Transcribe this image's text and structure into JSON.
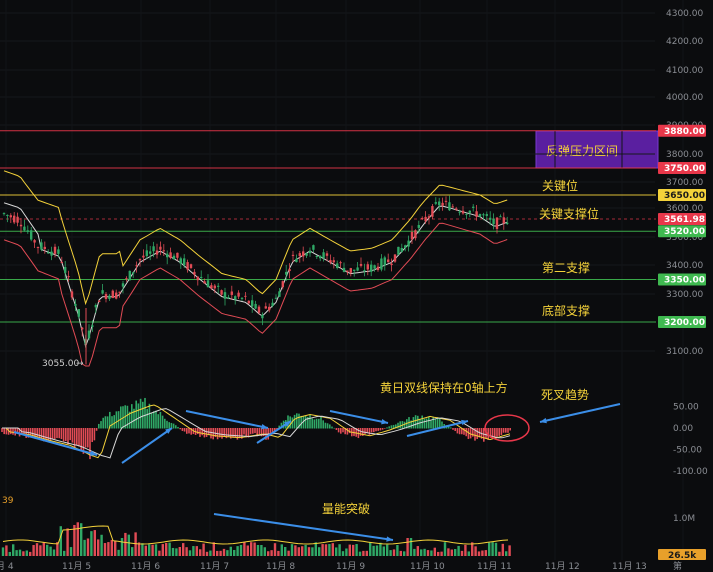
{
  "chart_data": [
    {
      "type": "candlestick",
      "panel": "price",
      "x_labels": [
        "月 4",
        "11月 5",
        "11月 6",
        "11月 7",
        "11月 8",
        "11月 9",
        "11月 10",
        "11月 11",
        "11月 12",
        "11月 13",
        "第 "
      ],
      "y_ticks": [
        "4300.00",
        "4200.00",
        "4100.00",
        "4000.00",
        "3900.00",
        "3800.00",
        "3700.00",
        "3600.00",
        "3500.00",
        "3400.00",
        "3300.00",
        "3100.00"
      ],
      "ylim": [
        3050,
        4310
      ],
      "levels": [
        {
          "name": "反弹压力区间",
          "price_label": "3880.00",
          "value": 3880,
          "color": "#e8374a"
        },
        {
          "name": "",
          "price_label": "3750.00",
          "value": 3750,
          "color": "#e8374a"
        },
        {
          "name": "关键位",
          "price_label": "3650.00",
          "value": 3650,
          "color": "#f4d23a"
        },
        {
          "name": "关键支撑位",
          "price_label": "3561.98",
          "value": 3561.98,
          "color": "#e8374a"
        },
        {
          "name": "",
          "price_label": "3520.00",
          "value": 3520,
          "color": "#3fb950"
        },
        {
          "name": "第二支撑",
          "price_label": "3350.00",
          "value": 3350,
          "color": "#3fb950"
        },
        {
          "name": "底部支撑",
          "price_label": "3200.00",
          "value": 3200,
          "color": "#3fb950"
        }
      ],
      "low_marker": "3055.00",
      "resistance_zone": {
        "label": "反弹压力区间",
        "from": 3750,
        "to": 3880
      },
      "colors": {
        "up": "#2fa866",
        "down": "#e14b55",
        "upper_band": "#f4d23a",
        "lower_band": "#e14b55",
        "mid": "#d8d8d8"
      }
    },
    {
      "type": "macd",
      "panel": "macd",
      "y_ticks": [
        "50.00",
        "0.00",
        "-50.00",
        "-100.00"
      ],
      "ylim": [
        -140,
        80
      ],
      "annotations": [
        "黄日双线保持在0轴上方",
        "死叉趋势"
      ]
    },
    {
      "type": "volume",
      "panel": "volume",
      "y_ticks": [
        "1.0M"
      ],
      "corner_label": "39",
      "current_label": "26.5k",
      "annotations": [
        "量能突破"
      ]
    }
  ]
}
